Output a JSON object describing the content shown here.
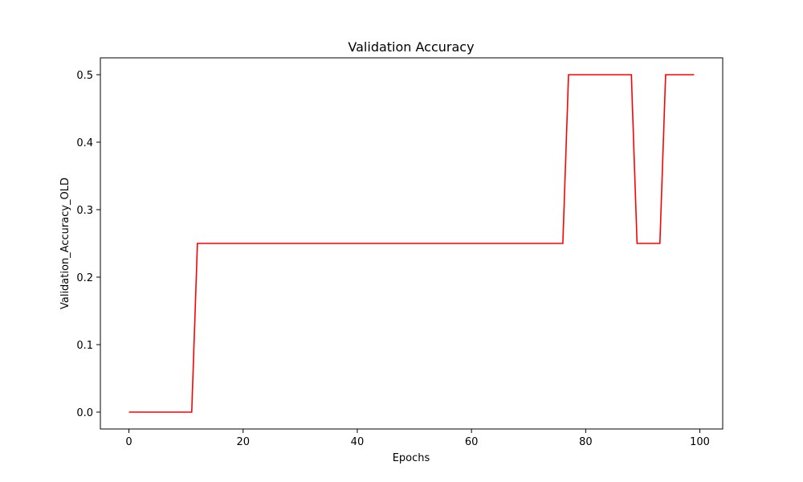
{
  "chart_data": {
    "type": "line",
    "title": "Validation Accuracy",
    "xlabel": "Epochs",
    "ylabel": "Validation_Accuracy_OLD",
    "xlim": [
      -5,
      104
    ],
    "ylim": [
      -0.025,
      0.525
    ],
    "xticks": [
      0,
      20,
      40,
      60,
      80,
      100
    ],
    "yticks": [
      0.0,
      0.1,
      0.2,
      0.3,
      0.4,
      0.5
    ],
    "xtick_labels": [
      "0",
      "20",
      "40",
      "60",
      "80",
      "100"
    ],
    "ytick_labels": [
      "0.0",
      "0.1",
      "0.2",
      "0.3",
      "0.4",
      "0.5"
    ],
    "grid": false,
    "legend": "none",
    "line_color": "#ff0000",
    "series": [
      {
        "x": [
          0,
          11,
          12,
          76,
          77,
          88,
          89,
          93,
          94,
          99
        ],
        "y": [
          0.0,
          0.0,
          0.25,
          0.25,
          0.5,
          0.5,
          0.25,
          0.25,
          0.5,
          0.5
        ]
      }
    ]
  }
}
